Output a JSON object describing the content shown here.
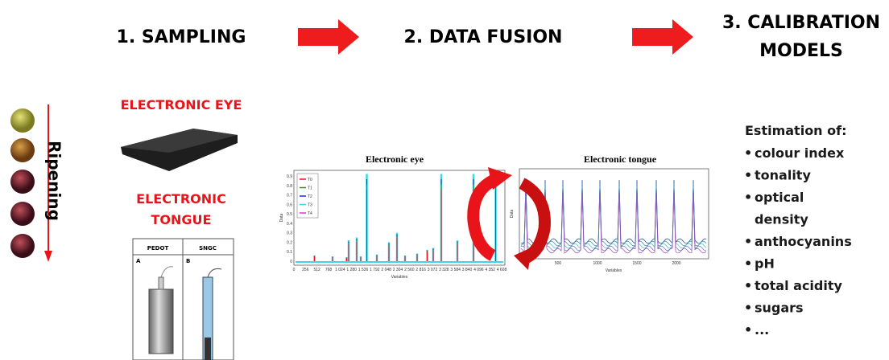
{
  "steps": {
    "sampling": "1. SAMPLING",
    "fusion": "2. DATA FUSION",
    "calibration": [
      "3. CALIBRATION",
      "MODELS"
    ]
  },
  "ripening": "Ripening",
  "sensors": {
    "eye": "ELECTRONIC EYE",
    "tongue": [
      "ELECTRONIC",
      "TONGUE"
    ],
    "electrodes": {
      "headers": [
        "PEDOT",
        "SNGC"
      ],
      "panels": [
        "A",
        "B"
      ]
    }
  },
  "eye_plot": {
    "title": "Electronic eye",
    "ylabel": "Data",
    "xlabel": "Variables",
    "legend": [
      "T0",
      "T1",
      "T2",
      "T3",
      "T4"
    ],
    "yticks": [
      "0",
      "0.1",
      "0.2",
      "0.3",
      "0.4",
      "0.5",
      "0.6",
      "0.7",
      "0.8",
      "0.9"
    ],
    "xticks": [
      "0",
      "256",
      "512",
      "768",
      "1 024",
      "1 280",
      "1 536",
      "1 792",
      "2 048",
      "2 304",
      "2 560",
      "2 816",
      "3 072",
      "3 328",
      "3 584",
      "3 840",
      "4 096",
      "4 352",
      "4 608"
    ]
  },
  "tongue_plot": {
    "title": "Electronic tongue",
    "ylabel": "Data",
    "xlabel": "Variables",
    "xticks": [
      "500",
      "1000",
      "1500",
      "2000"
    ]
  },
  "estimation": {
    "heading": "Estimation of:",
    "items": [
      "colour index",
      "tonality",
      "optical density",
      "anthocyanins",
      "pH",
      "total acidity",
      "sugars",
      "..."
    ]
  }
}
